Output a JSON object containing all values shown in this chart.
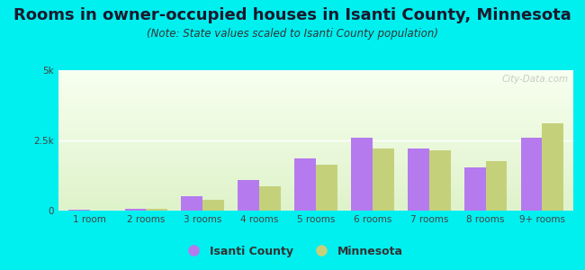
{
  "title": "Rooms in owner-occupied houses in Isanti County, Minnesota",
  "subtitle": "(Note: State values scaled to Isanti County population)",
  "categories": [
    "1 room",
    "2 rooms",
    "3 rooms",
    "4 rooms",
    "5 rooms",
    "6 rooms",
    "7 rooms",
    "8 rooms",
    "9+ rooms"
  ],
  "isanti_values": [
    18,
    60,
    520,
    1100,
    1850,
    2600,
    2200,
    1550,
    2600
  ],
  "minnesota_values": [
    12,
    65,
    380,
    880,
    1650,
    2200,
    2150,
    1750,
    3100
  ],
  "isanti_color": "#b57bee",
  "minnesota_color": "#c5d17a",
  "background_outer": "#00efef",
  "ylim": [
    0,
    5000
  ],
  "ytick_labels": [
    "0",
    "2.5k",
    "5k"
  ],
  "ytick_vals": [
    0,
    2500,
    5000
  ],
  "title_fontsize": 13,
  "subtitle_fontsize": 8.5,
  "bar_width": 0.38,
  "legend_labels": [
    "Isanti County",
    "Minnesota"
  ],
  "watermark": "City-Data.com"
}
